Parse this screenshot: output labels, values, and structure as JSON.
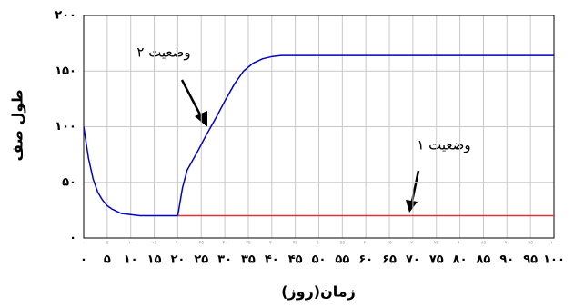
{
  "chart_data": {
    "type": "line",
    "y_label": "طول صف",
    "x_label": "زمان(روز)",
    "annotations": [
      "وضعیت ۲",
      "وضعیت ۱"
    ],
    "xlim": [
      0,
      100
    ],
    "ylim": [
      0,
      200
    ],
    "grid": true,
    "xticks": [
      {
        "value": 0,
        "label": "۰"
      },
      {
        "value": 5,
        "label": "۵"
      },
      {
        "value": 10,
        "label": "۱۰"
      },
      {
        "value": 15,
        "label": "۱۵"
      },
      {
        "value": 20,
        "label": "۲۰"
      },
      {
        "value": 25,
        "label": "۲۵"
      },
      {
        "value": 30,
        "label": "۳۰"
      },
      {
        "value": 35,
        "label": "۳۵"
      },
      {
        "value": 40,
        "label": "۴۰"
      },
      {
        "value": 45,
        "label": "۴۵"
      },
      {
        "value": 50,
        "label": "۵۰"
      },
      {
        "value": 55,
        "label": "۵۵"
      },
      {
        "value": 60,
        "label": "۶۰"
      },
      {
        "value": 65,
        "label": "۶۵"
      },
      {
        "value": 70,
        "label": "۷۰"
      },
      {
        "value": 75,
        "label": "۷۵"
      },
      {
        "value": 80,
        "label": "۸۰"
      },
      {
        "value": 85,
        "label": "۸۵"
      },
      {
        "value": 90,
        "label": "۹۰"
      },
      {
        "value": 95,
        "label": "۹۵"
      },
      {
        "value": 100,
        "label": "۱۰۰"
      }
    ],
    "yticks": [
      {
        "value": 0,
        "label": "۰"
      },
      {
        "value": 50,
        "label": "۵۰"
      },
      {
        "value": 100,
        "label": "۱۰۰"
      },
      {
        "value": 150,
        "label": "۱۵۰"
      },
      {
        "value": 200,
        "label": "۲۰۰"
      }
    ],
    "series": [
      {
        "color": "#0000cc",
        "x": [
          0,
          1,
          2,
          3,
          4,
          5,
          6,
          8,
          10,
          12,
          15,
          20,
          21,
          22,
          24,
          26,
          28,
          30,
          32,
          34,
          36,
          38,
          40,
          42,
          45,
          50,
          60,
          70,
          80,
          90,
          100
        ],
        "values": [
          100,
          72,
          53,
          41,
          34,
          29,
          26,
          22,
          21,
          20,
          20,
          20,
          45,
          61,
          76,
          92,
          107,
          123,
          138,
          150,
          157,
          161,
          163,
          164,
          164,
          164,
          164,
          164,
          164,
          164,
          164
        ]
      },
      {
        "color": "#dd3333",
        "x": [
          20,
          100
        ],
        "values": [
          20,
          20
        ]
      }
    ]
  }
}
